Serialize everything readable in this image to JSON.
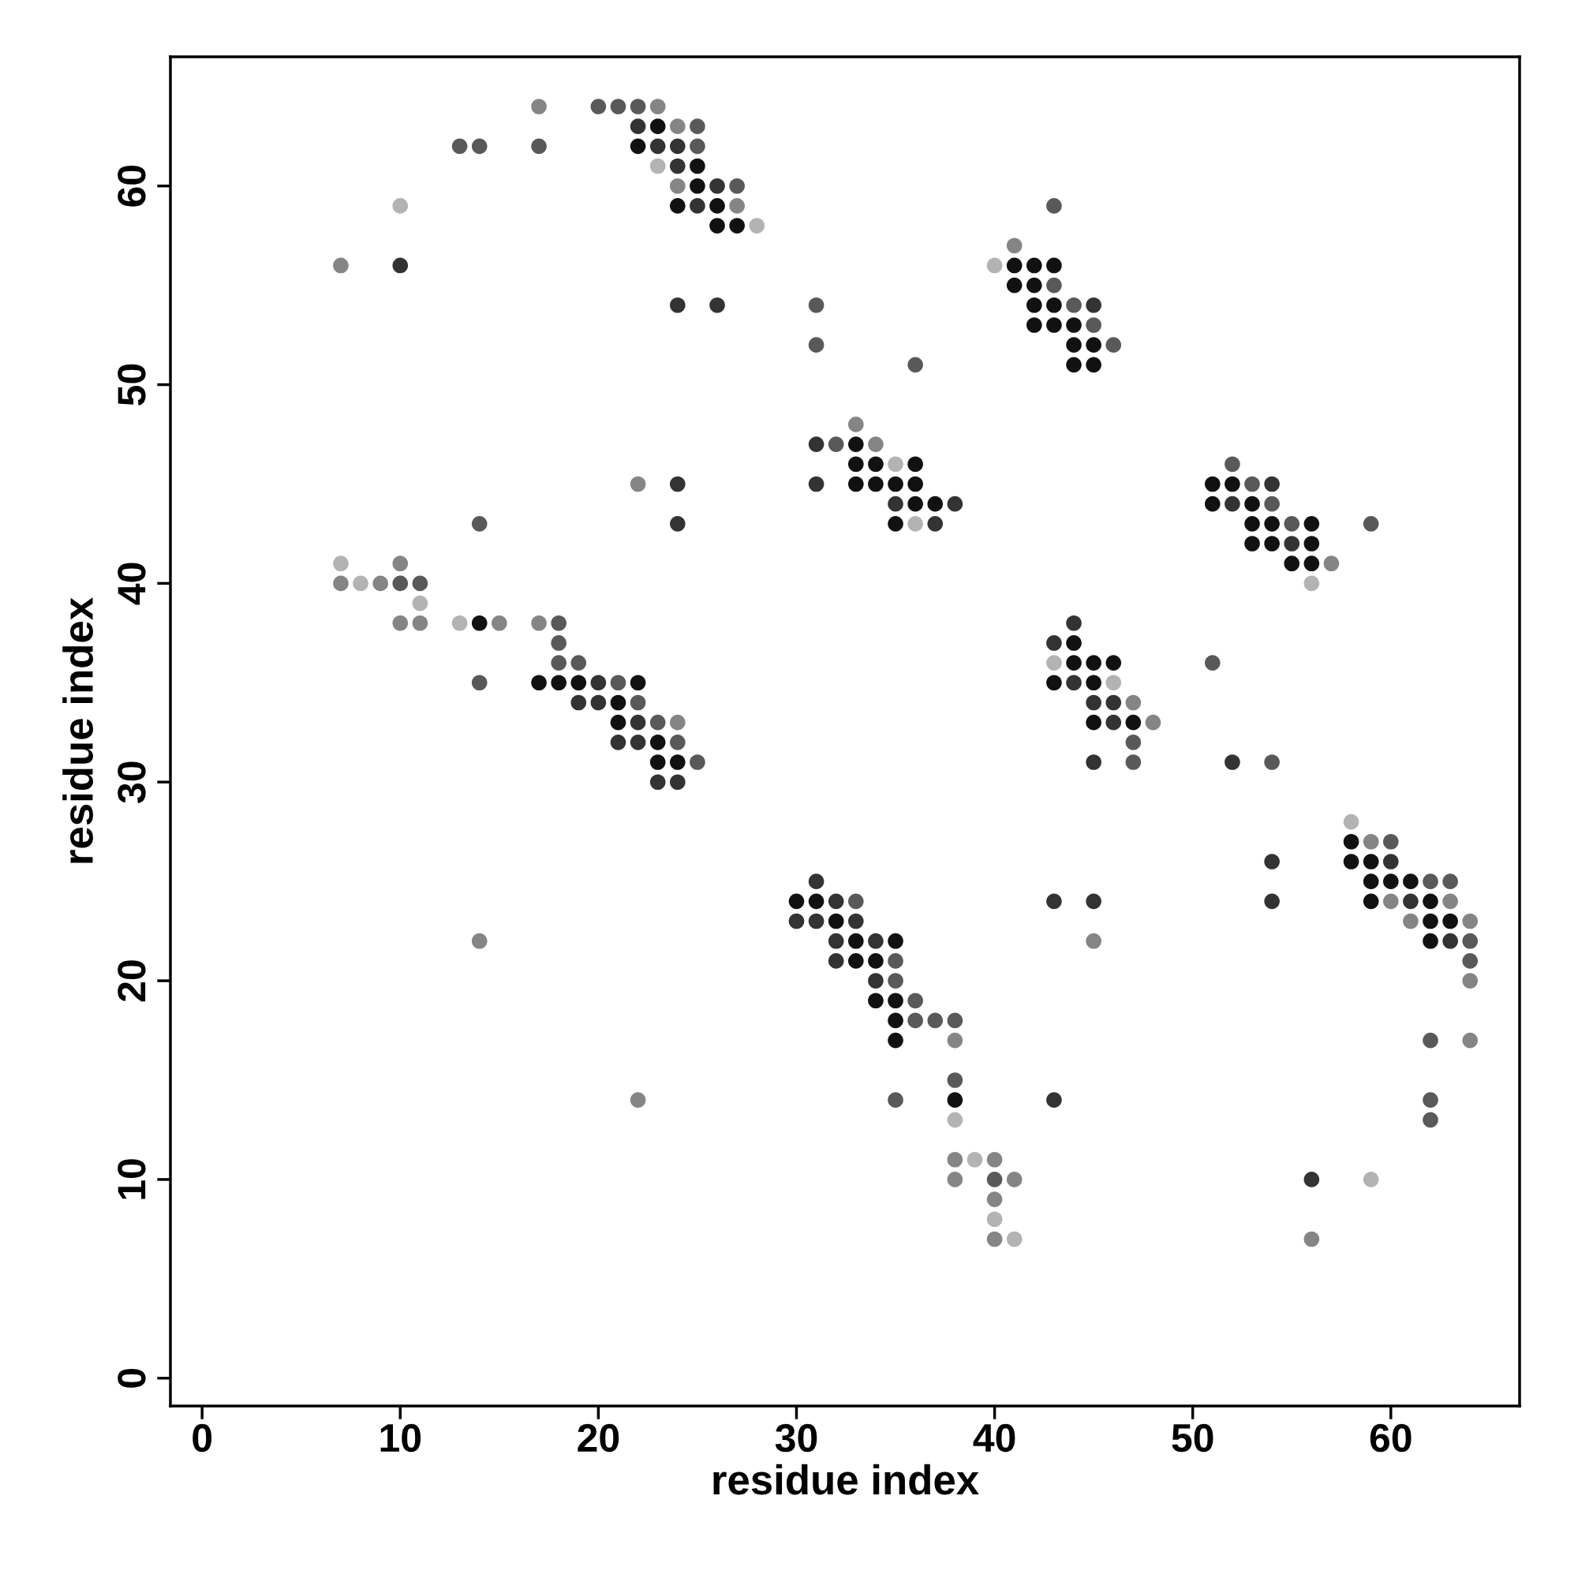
{
  "chart_data": {
    "type": "scatter",
    "xlabel": "residue index",
    "ylabel": "residue index",
    "xlim": [
      -1.6,
      66.5
    ],
    "ylim": [
      -1.4,
      66.5
    ],
    "xticks": [
      0,
      10,
      20,
      30,
      40,
      50,
      60
    ],
    "yticks": [
      0,
      10,
      20,
      30,
      40,
      50,
      60
    ],
    "marker": "circle",
    "series": [
      {
        "color": "#111111",
        "x": [
          23,
          22,
          25,
          25,
          24,
          26,
          26,
          27,
          41,
          42,
          43,
          41,
          42,
          42,
          43,
          42,
          43,
          44,
          44,
          45,
          44,
          45,
          33,
          33,
          34,
          36,
          33,
          34,
          35,
          36,
          51,
          52,
          36,
          37,
          51,
          53,
          35,
          53,
          54,
          56,
          53,
          54,
          56,
          55,
          56,
          14,
          44,
          44,
          45,
          46,
          17,
          18,
          19,
          22,
          43,
          45,
          21,
          21,
          45,
          47,
          23,
          23,
          24,
          58,
          58,
          59,
          59,
          60,
          61,
          30,
          31,
          59,
          62,
          32,
          62,
          63,
          33,
          35,
          62,
          33,
          34,
          34,
          35,
          35,
          35,
          38
        ],
        "values": [
          63,
          62,
          61,
          60,
          59,
          59,
          58,
          58,
          56,
          56,
          56,
          55,
          55,
          54,
          54,
          53,
          53,
          53,
          52,
          52,
          51,
          51,
          47,
          46,
          46,
          46,
          45,
          45,
          45,
          45,
          45,
          45,
          44,
          44,
          44,
          44,
          43,
          43,
          43,
          43,
          42,
          42,
          42,
          41,
          41,
          38,
          37,
          36,
          36,
          36,
          35,
          35,
          35,
          35,
          35,
          35,
          34,
          33,
          33,
          33,
          32,
          31,
          31,
          27,
          26,
          26,
          25,
          25,
          25,
          24,
          24,
          24,
          24,
          23,
          23,
          23,
          22,
          22,
          22,
          21,
          21,
          19,
          19,
          18,
          17,
          14
        ]
      },
      {
        "color": "#333333",
        "x": [
          22,
          23,
          24,
          24,
          26,
          25,
          10,
          24,
          26,
          45,
          31,
          24,
          31,
          54,
          35,
          38,
          52,
          24,
          37,
          55,
          44,
          43,
          20,
          44,
          19,
          20,
          45,
          46,
          22,
          46,
          21,
          22,
          45,
          52,
          23,
          24,
          54,
          60,
          31,
          32,
          43,
          45,
          54,
          61,
          30,
          31,
          33,
          32,
          34,
          63,
          32,
          34,
          43,
          56
        ],
        "values": [
          63,
          62,
          62,
          61,
          60,
          59,
          56,
          54,
          54,
          54,
          47,
          45,
          45,
          45,
          44,
          44,
          44,
          43,
          43,
          42,
          38,
          37,
          35,
          35,
          34,
          34,
          34,
          34,
          33,
          33,
          32,
          32,
          31,
          31,
          30,
          30,
          26,
          26,
          25,
          24,
          24,
          24,
          24,
          24,
          23,
          23,
          23,
          22,
          22,
          22,
          21,
          20,
          14,
          10
        ]
      },
      {
        "color": "#595959",
        "x": [
          20,
          21,
          22,
          25,
          13,
          14,
          17,
          25,
          27,
          43,
          43,
          31,
          44,
          45,
          31,
          46,
          36,
          32,
          52,
          53,
          54,
          14,
          55,
          59,
          10,
          11,
          18,
          18,
          18,
          19,
          51,
          14,
          21,
          22,
          23,
          24,
          47,
          25,
          47,
          54,
          60,
          62,
          63,
          33,
          64,
          35,
          64,
          35,
          36,
          36,
          37,
          38,
          62,
          38,
          35,
          62,
          62,
          40
        ],
        "values": [
          64,
          64,
          64,
          63,
          62,
          62,
          62,
          62,
          60,
          59,
          55,
          54,
          54,
          53,
          52,
          52,
          51,
          47,
          46,
          45,
          44,
          43,
          43,
          43,
          40,
          40,
          38,
          37,
          36,
          36,
          36,
          35,
          35,
          34,
          33,
          32,
          32,
          31,
          31,
          31,
          27,
          25,
          25,
          24,
          22,
          21,
          21,
          20,
          19,
          18,
          18,
          18,
          17,
          15,
          14,
          14,
          13,
          10
        ]
      },
      {
        "color": "#858585",
        "x": [
          17,
          23,
          24,
          24,
          27,
          41,
          7,
          33,
          34,
          22,
          10,
          57,
          7,
          9,
          10,
          11,
          15,
          17,
          47,
          24,
          48,
          59,
          60,
          63,
          61,
          64,
          14,
          45,
          64,
          38,
          64,
          22,
          38,
          40,
          38,
          41,
          40,
          40,
          56
        ],
        "values": [
          64,
          64,
          63,
          60,
          59,
          57,
          56,
          48,
          47,
          45,
          41,
          41,
          40,
          40,
          38,
          38,
          38,
          38,
          34,
          33,
          33,
          27,
          24,
          24,
          23,
          23,
          22,
          22,
          20,
          17,
          17,
          14,
          11,
          11,
          10,
          10,
          9,
          7,
          7
        ]
      },
      {
        "color": "#b3b3b3",
        "x": [
          23,
          10,
          28,
          40,
          35,
          36,
          7,
          8,
          56,
          11,
          13,
          43,
          46,
          58,
          38,
          39,
          59,
          40,
          41
        ],
        "values": [
          61,
          59,
          58,
          56,
          46,
          43,
          41,
          40,
          40,
          39,
          38,
          36,
          35,
          28,
          13,
          11,
          10,
          8,
          7
        ]
      }
    ]
  }
}
